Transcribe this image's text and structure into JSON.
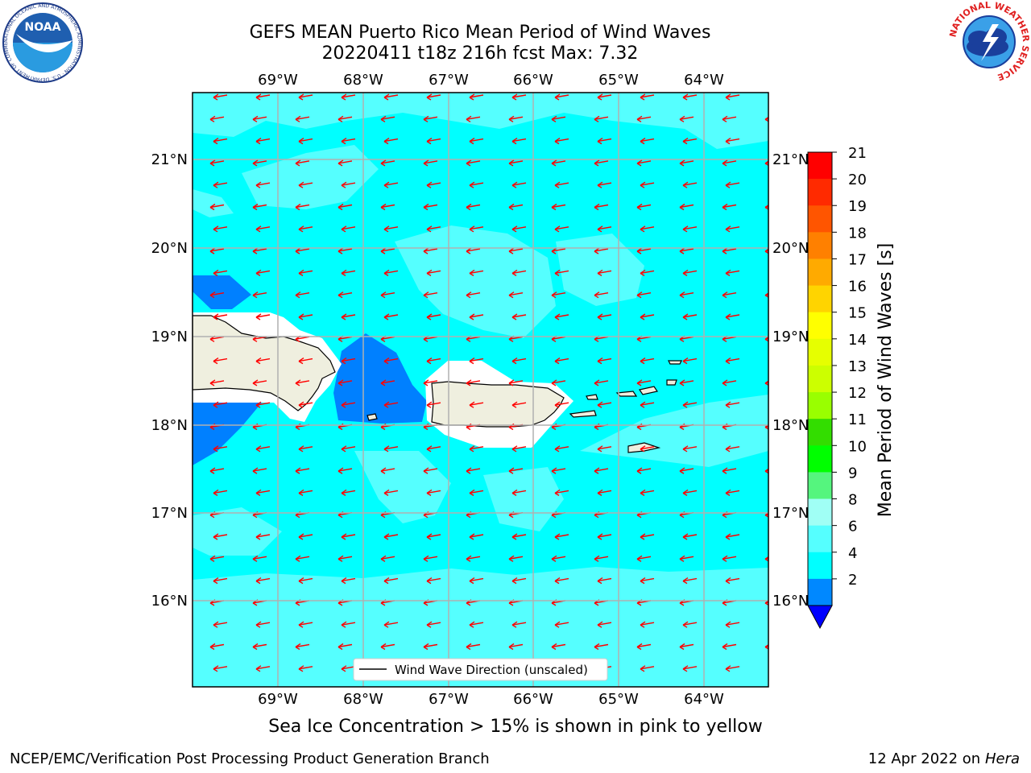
{
  "header": {
    "title_line1": "GEFS MEAN Puerto Rico Mean Period of Wind Waves",
    "title_line2": "20220411 t18z 216h fcst   Max: 7.32"
  },
  "map": {
    "lon_labels": [
      "69°W",
      "68°W",
      "67°W",
      "66°W",
      "65°W",
      "64°W"
    ],
    "lat_labels": [
      "21°N",
      "20°N",
      "19°N",
      "18°N",
      "17°N",
      "16°N"
    ],
    "legend_label": "Wind Wave Direction (unscaled)",
    "arrow_color": "#ff0000",
    "wave_direction": "westward (toward the west-southwest)"
  },
  "colorbar": {
    "label": "Mean Period of Wind Waves [s]",
    "ticks": [
      "21",
      "20",
      "19",
      "18",
      "17",
      "16",
      "15",
      "14",
      "13",
      "12",
      "11",
      "10",
      "9",
      "8",
      "6",
      "4",
      "2"
    ],
    "colors": [
      "#ff0000",
      "#ff2a00",
      "#ff5500",
      "#ff8000",
      "#ffaa00",
      "#ffd400",
      "#ffff00",
      "#e6ff00",
      "#ccff00",
      "#99ff00",
      "#33dd00",
      "#00ff00",
      "#55f57e",
      "#a0fff5",
      "#55ffff",
      "#00ffff",
      "#0088ff"
    ],
    "extend_color": "#0000ff"
  },
  "caption": "Sea Ice Concentration > 15% is shown in pink to yellow",
  "footer": {
    "left": "NCEP/EMC/Verification Post Processing Product Generation Branch",
    "right_date": "12 Apr 2022 on ",
    "right_host": "Hera"
  },
  "logos": {
    "noaa_text": "NOAA",
    "noaa_ring_text": "NATIONAL OCEANIC AND ATMOSPHERIC ADMINISTRATION · U.S. DEPARTMENT OF COMMERCE",
    "nws_ring_text": "NATIONAL WEATHER SERVICE"
  }
}
